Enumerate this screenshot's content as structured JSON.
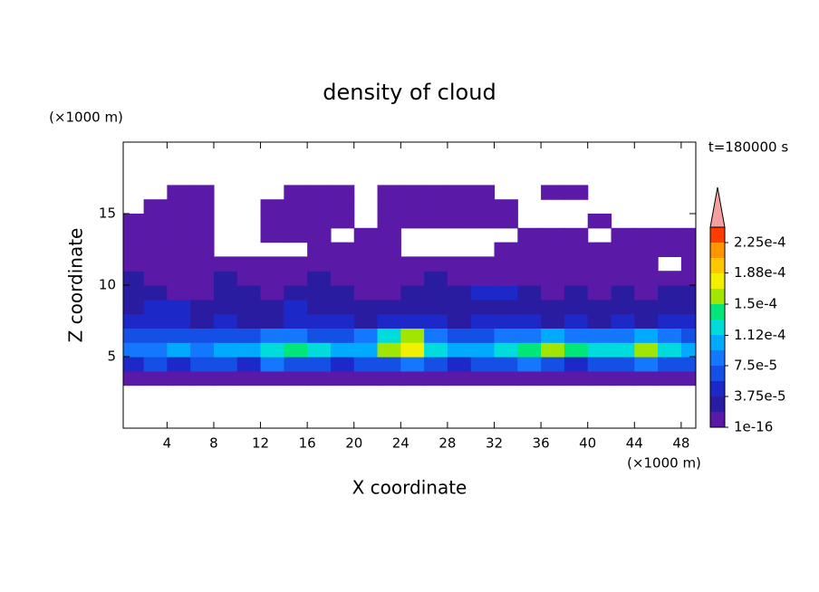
{
  "chart_data": {
    "type": "contour",
    "title": "density of cloud",
    "x_label": "X coordinate",
    "y_label": "Z coordinate",
    "x_unit": "(×1000 m)",
    "y_unit": "(×1000 m)",
    "annotation": "t=180000 s",
    "xlim": [
      0.25,
      49.25
    ],
    "ylim": [
      0,
      20
    ],
    "xticks": [
      4,
      8,
      12,
      16,
      20,
      24,
      28,
      32,
      36,
      40,
      44,
      48
    ],
    "yticks": [
      5,
      10,
      15
    ],
    "field": {
      "x": [
        1,
        3,
        5,
        7,
        9,
        11,
        13,
        15,
        17,
        19,
        21,
        23,
        25,
        27,
        29,
        31,
        33,
        35,
        37,
        39,
        41,
        43,
        45,
        47,
        49
      ],
      "z": [
        3.5,
        4.5,
        5.5,
        6.5,
        7.5,
        8.5,
        9.5,
        10.5,
        11.5,
        12.5,
        13.5,
        14.5,
        15.5,
        16.5
      ],
      "values": [
        [
          1e-05,
          1e-05,
          1e-05,
          1e-05,
          1e-05,
          1e-05,
          1e-05,
          1e-05,
          1e-05,
          1e-05,
          1e-05,
          1e-05,
          1e-05,
          1e-05,
          1e-05,
          1e-05,
          1e-05,
          1e-05,
          1e-05,
          1e-05,
          1e-05,
          1e-05,
          1e-05,
          1e-05,
          1e-05
        ],
        [
          4e-05,
          6e-05,
          5e-05,
          7e-05,
          6e-05,
          5e-05,
          8e-05,
          7e-05,
          6e-05,
          5e-05,
          6e-05,
          7e-05,
          8e-05,
          6e-05,
          5e-05,
          6e-05,
          7e-05,
          8e-05,
          6e-05,
          5e-05,
          7e-05,
          6e-05,
          8e-05,
          7e-05,
          6e-05
        ],
        [
          8e-05,
          9e-05,
          0.0001,
          9e-05,
          0.0001,
          0.00011,
          0.00012,
          0.000135,
          0.00012,
          0.0001,
          0.00011,
          0.000155,
          0.00017,
          0.00013,
          0.0001,
          0.00011,
          0.00012,
          0.000135,
          0.000155,
          0.00014,
          0.00012,
          0.00013,
          0.00015,
          0.00013,
          0.00011
        ],
        [
          6e-05,
          7e-05,
          6e-05,
          7e-05,
          6e-05,
          7e-05,
          8e-05,
          9e-05,
          7e-05,
          6e-05,
          9e-05,
          0.00013,
          0.00015,
          8e-05,
          6e-05,
          7e-05,
          8e-05,
          9e-05,
          0.0001,
          9e-05,
          8e-05,
          9e-05,
          0.0001,
          8e-05,
          7e-05
        ],
        [
          4e-05,
          5e-05,
          4e-05,
          3e-05,
          4e-05,
          3e-05,
          3e-05,
          4e-05,
          5e-05,
          4e-05,
          3e-05,
          4e-05,
          5e-05,
          4e-05,
          3e-05,
          4e-05,
          5e-05,
          4e-05,
          3e-05,
          4e-05,
          3e-05,
          4e-05,
          3e-05,
          4e-05,
          5e-05
        ],
        [
          3e-05,
          5e-05,
          4e-05,
          2.5e-05,
          2e-05,
          2.5e-05,
          3e-05,
          4e-05,
          3e-05,
          2.5e-05,
          2e-05,
          3e-05,
          2.5e-05,
          2e-05,
          2.5e-05,
          3e-05,
          2.5e-05,
          2e-05,
          2.5e-05,
          3e-05,
          2e-05,
          2.5e-05,
          2e-05,
          3e-05,
          2.5e-05
        ],
        [
          2.5e-05,
          2e-05,
          1.5e-05,
          1.5e-05,
          2e-05,
          2e-05,
          1.5e-05,
          2e-05,
          2.5e-05,
          2e-05,
          1.5e-05,
          1.5e-05,
          2e-05,
          2.5e-05,
          2e-05,
          4e-05,
          4e-05,
          2e-05,
          1.5e-05,
          2e-05,
          1.5e-05,
          2e-05,
          1.5e-05,
          2e-05,
          2e-05
        ],
        [
          2e-05,
          1e-05,
          1e-05,
          1e-05,
          2e-05,
          1e-05,
          1e-05,
          1e-05,
          2e-05,
          1e-05,
          1e-05,
          1e-05,
          1e-05,
          2e-05,
          1e-05,
          1e-05,
          1e-05,
          1e-05,
          1e-05,
          1e-05,
          1e-05,
          1e-05,
          1e-05,
          1e-05,
          1e-05
        ],
        [
          1e-05,
          1e-05,
          1e-05,
          1e-05,
          1e-05,
          1e-05,
          1e-05,
          1e-05,
          1e-05,
          1e-05,
          1e-05,
          1e-05,
          1e-05,
          1e-05,
          1e-05,
          1e-05,
          1e-05,
          1e-05,
          1e-05,
          1e-05,
          1e-05,
          1e-05,
          1e-05,
          null,
          1e-05
        ],
        [
          1e-05,
          1e-05,
          1e-05,
          1e-05,
          null,
          null,
          null,
          null,
          1e-05,
          1e-05,
          1e-05,
          1e-05,
          null,
          null,
          null,
          null,
          1e-05,
          1e-05,
          1e-05,
          1e-05,
          1e-05,
          1e-05,
          1e-05,
          1e-05,
          1e-05
        ],
        [
          1e-05,
          1e-05,
          1e-05,
          1e-05,
          null,
          null,
          1e-05,
          1e-05,
          1e-05,
          null,
          1e-05,
          1e-05,
          null,
          null,
          null,
          null,
          null,
          1e-05,
          1e-05,
          1e-05,
          null,
          1e-05,
          1e-05,
          1e-05,
          1e-05
        ],
        [
          1e-05,
          1e-05,
          1e-05,
          1e-05,
          null,
          null,
          1e-05,
          1e-05,
          1e-05,
          1e-05,
          null,
          1e-05,
          1e-05,
          1e-05,
          1e-05,
          1e-05,
          1e-05,
          null,
          null,
          null,
          1e-05,
          null,
          null,
          null,
          null
        ],
        [
          null,
          1e-05,
          1e-05,
          1e-05,
          null,
          null,
          1e-05,
          1e-05,
          1e-05,
          1e-05,
          null,
          1e-05,
          1e-05,
          1e-05,
          1e-05,
          1e-05,
          1e-05,
          null,
          null,
          null,
          null,
          null,
          null,
          null,
          null
        ],
        [
          null,
          null,
          1e-05,
          1e-05,
          null,
          null,
          null,
          1e-05,
          1e-05,
          1e-05,
          null,
          1e-05,
          1e-05,
          1e-05,
          1e-05,
          1e-05,
          null,
          null,
          1e-05,
          1e-05,
          null,
          null,
          null,
          null,
          null
        ]
      ]
    },
    "colorbar": {
      "levels": [
        1e-16,
        1.875e-05,
        3.75e-05,
        5.625e-05,
        7.5e-05,
        9.375e-05,
        0.0001125,
        0.00013125,
        0.00015,
        0.00016875,
        0.0001875,
        0.00020625,
        0.000225,
        0.00024375
      ],
      "colors": [
        "#5b19a8",
        "#2a1ca0",
        "#1c28c8",
        "#1450e6",
        "#1478ff",
        "#00aaff",
        "#00dcdc",
        "#00e678",
        "#a0e600",
        "#f0f000",
        "#ffc800",
        "#ff9600",
        "#ff3c00"
      ],
      "extend_color": "#f4a0a0",
      "ticks": [
        {
          "value": 1e-16,
          "label": "1e-16"
        },
        {
          "value": 3.75e-05,
          "label": "3.75e-5"
        },
        {
          "value": 7.5e-05,
          "label": "7.5e-5"
        },
        {
          "value": 0.000112,
          "label": "1.12e-4"
        },
        {
          "value": 0.00015,
          "label": "1.5e-4"
        },
        {
          "value": 0.000188,
          "label": "1.88e-4"
        },
        {
          "value": 0.000225,
          "label": "2.25e-4"
        }
      ]
    }
  }
}
